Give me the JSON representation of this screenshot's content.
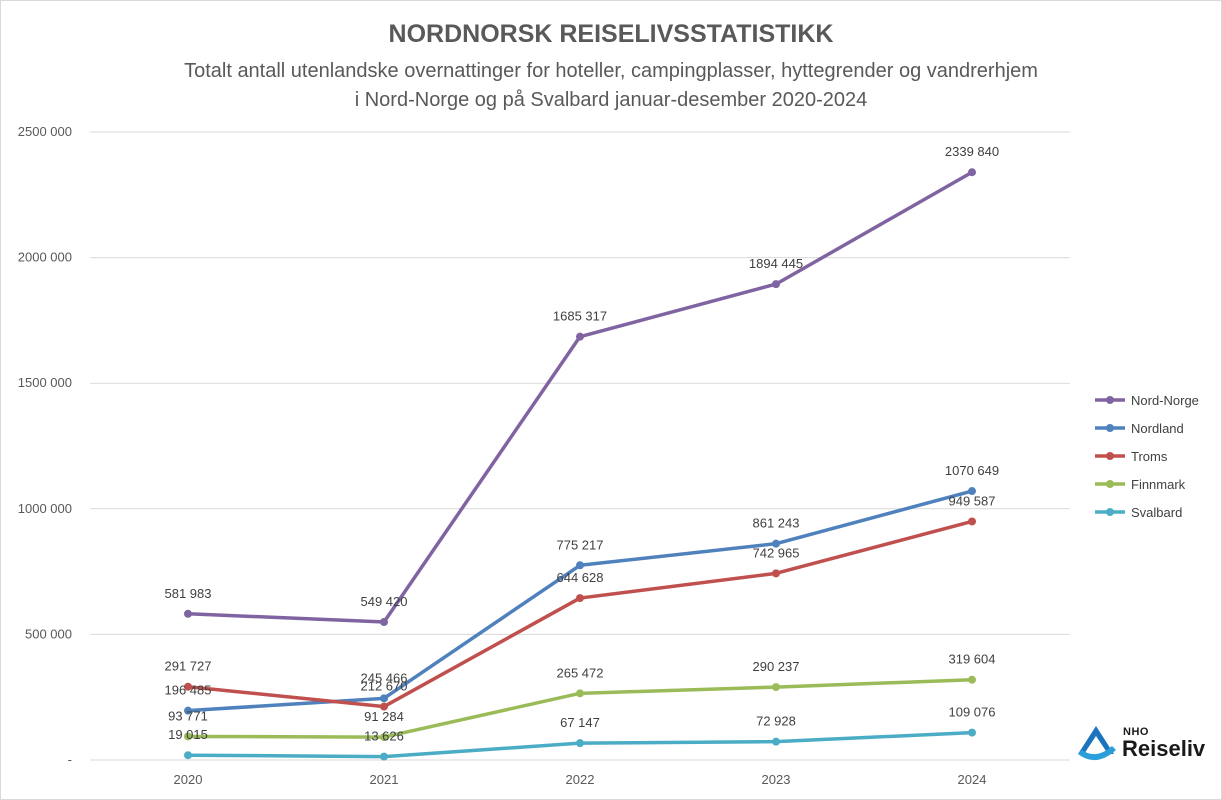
{
  "chart_data": {
    "type": "line",
    "title": "NORDNORSK REISELIVSSTATISTIKK",
    "subtitle_lines": [
      "Totalt antall utenlandske overnattinger for hoteller, campingplasser, hyttegrender og vandrerhjem",
      "i Nord-Norge og på Svalbard januar-desember 2020-2024"
    ],
    "categories": [
      "2020",
      "2021",
      "2022",
      "2023",
      "2024"
    ],
    "ylim": [
      0,
      2500000
    ],
    "yticks": [
      {
        "value": 0,
        "label": "-"
      },
      {
        "value": 500000,
        "label": "500 000"
      },
      {
        "value": 1000000,
        "label": "1000 000"
      },
      {
        "value": 1500000,
        "label": "1500 000"
      },
      {
        "value": 2000000,
        "label": "2000 000"
      },
      {
        "value": 2500000,
        "label": "2500 000"
      }
    ],
    "grid": true,
    "legend_position": "right",
    "series": [
      {
        "name": "Nord-Norge",
        "color": "#8064a2",
        "values": [
          581983,
          549420,
          1685317,
          1894445,
          2339840
        ],
        "labels": [
          "581 983",
          "549 420",
          "1685 317",
          "1894 445",
          "2339 840"
        ]
      },
      {
        "name": "Nordland",
        "color": "#4f81bd",
        "values": [
          196485,
          245466,
          775217,
          861243,
          1070649
        ],
        "labels": [
          "196 485",
          "245 466",
          "775 217",
          "861 243",
          "1070 649"
        ]
      },
      {
        "name": "Troms",
        "color": "#c0504d",
        "values": [
          291727,
          212670,
          644628,
          742965,
          949587
        ],
        "labels": [
          "291 727",
          "212 670",
          "644 628",
          "742 965",
          "949 587"
        ]
      },
      {
        "name": "Finnmark",
        "color": "#9bbb59",
        "values": [
          93771,
          91284,
          265472,
          290237,
          319604
        ],
        "labels": [
          "93 771",
          "91 284",
          "265 472",
          "290 237",
          "319 604"
        ]
      },
      {
        "name": "Svalbard",
        "color": "#4bacc6",
        "values": [
          19015,
          13626,
          67147,
          72928,
          109076
        ],
        "labels": [
          "19 015",
          "13 626",
          "67 147",
          "72 928",
          "109 076"
        ]
      }
    ]
  },
  "logo": {
    "top_text": "NHO",
    "word": "Reiseliv"
  }
}
